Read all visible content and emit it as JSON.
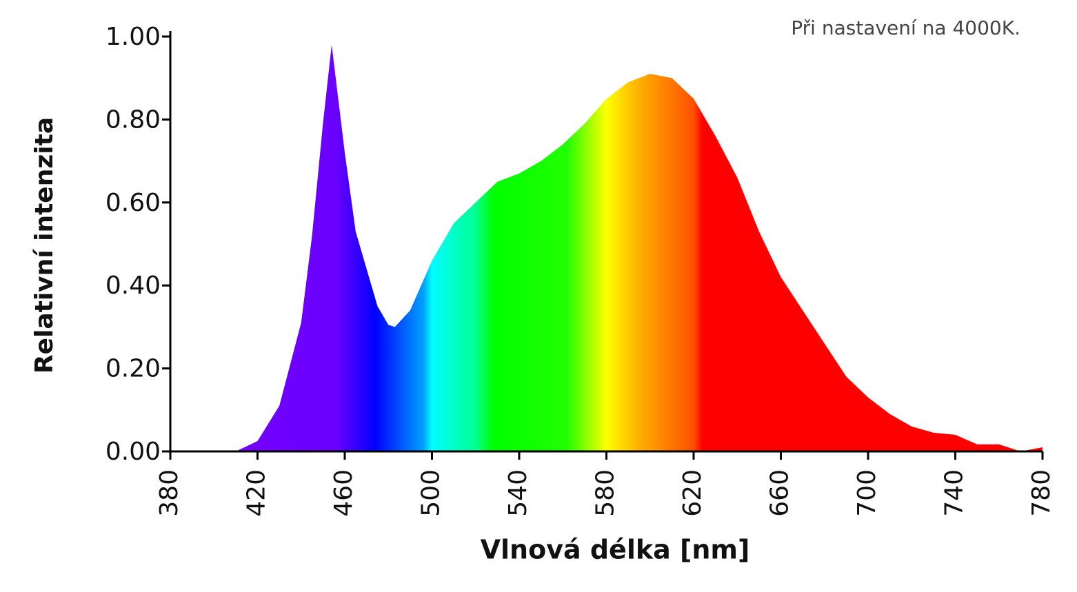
{
  "chart_data": {
    "type": "area",
    "note": "Při nastavení na 4000K.",
    "xlabel": "Vlnová délka [nm]",
    "ylabel": "Relativní intenzita",
    "x": [
      380,
      400,
      410,
      420,
      430,
      440,
      445,
      450,
      454,
      460,
      465,
      470,
      475,
      480,
      483,
      490,
      500,
      510,
      520,
      530,
      540,
      550,
      560,
      570,
      580,
      590,
      600,
      610,
      620,
      630,
      640,
      650,
      660,
      670,
      680,
      690,
      700,
      710,
      720,
      730,
      740,
      750,
      760,
      770,
      780
    ],
    "values": [
      0,
      0,
      0,
      0.025,
      0.11,
      0.31,
      0.52,
      0.79,
      0.98,
      0.72,
      0.53,
      0.44,
      0.35,
      0.305,
      0.3,
      0.34,
      0.46,
      0.55,
      0.6,
      0.65,
      0.67,
      0.7,
      0.74,
      0.79,
      0.85,
      0.89,
      0.91,
      0.9,
      0.85,
      0.76,
      0.66,
      0.53,
      0.42,
      0.34,
      0.26,
      0.18,
      0.13,
      0.09,
      0.06,
      0.045,
      0.04,
      0.017,
      0.017,
      0,
      0.01
    ],
    "xlim": [
      380,
      780
    ],
    "xticks": [
      380,
      420,
      460,
      500,
      540,
      580,
      620,
      660,
      700,
      740,
      780
    ],
    "ylim": [
      0,
      1
    ],
    "yticks": [
      {
        "value": 0,
        "label": "0.00"
      },
      {
        "value": 0.2,
        "label": "0.20"
      },
      {
        "value": 0.4,
        "label": "0.40"
      },
      {
        "value": 0.6,
        "label": "0.60"
      },
      {
        "value": 0.8,
        "label": "0.80"
      },
      {
        "value": 1,
        "label": "1.00"
      }
    ]
  }
}
